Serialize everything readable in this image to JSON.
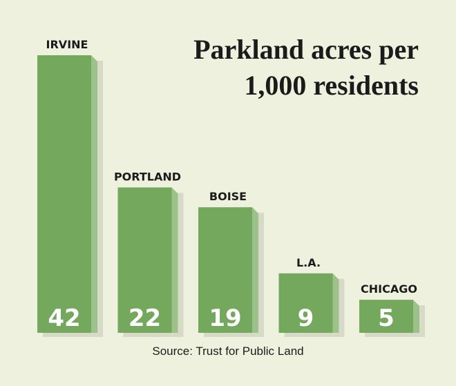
{
  "chart_data": {
    "type": "bar",
    "title": "Parkland acres per 1,000 residents",
    "title_lines": [
      "Parkland acres per",
      "1,000 residents"
    ],
    "categories": [
      "IRVINE",
      "PORTLAND",
      "BOISE",
      "L.A.",
      "CHICAGO"
    ],
    "values": [
      42,
      22,
      19,
      9,
      5
    ],
    "value_labels": [
      "42",
      "22",
      "19",
      "9",
      "5"
    ],
    "xlabel": "",
    "ylabel": "",
    "ylim": [
      0,
      42
    ],
    "grid": false,
    "legend": "none",
    "colors": {
      "bar_front": "#74a85c",
      "bar_side": "#9cc18a",
      "shadow": "#d7dac6",
      "background": "#eff1df",
      "text": "#1b1b1b",
      "value_text": "#ffffff"
    }
  },
  "source": "Source: Trust for Public Land"
}
